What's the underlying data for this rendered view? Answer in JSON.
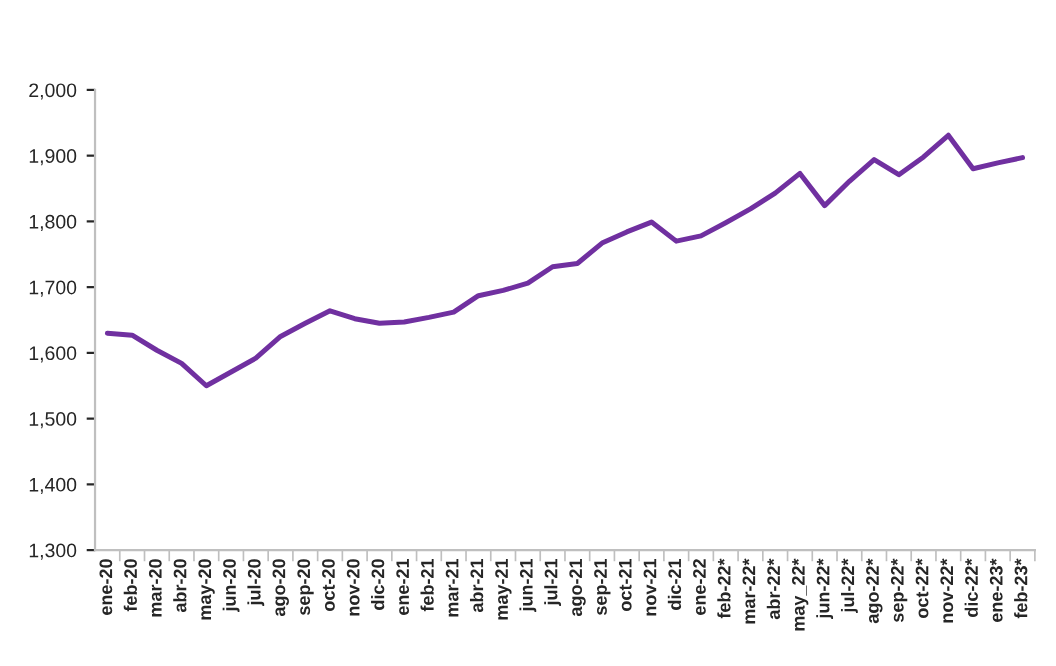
{
  "chart_data": {
    "type": "line",
    "categories": [
      "ene-20",
      "feb-20",
      "mar-20",
      "abr-20",
      "may-20",
      "jun-20",
      "jul-20",
      "ago-20",
      "sep-20",
      "oct-20",
      "nov-20",
      "dic-20",
      "ene-21",
      "feb-21",
      "mar-21",
      "abr-21",
      "may-21",
      "jun-21",
      "jul-21",
      "ago-21",
      "sep-21",
      "oct-21",
      "nov-21",
      "dic-21",
      "ene-22",
      "feb-22*",
      "mar-22*",
      "abr-22*",
      "may_22*",
      "jun-22*",
      "jul-22*",
      "ago-22*",
      "sep-22*",
      "oct-22*",
      "nov-22*",
      "dic-22*",
      "ene-23*",
      "feb-23*"
    ],
    "series": [
      {
        "color": "#7030a0",
        "values": [
          1630,
          1627,
          1604,
          1584,
          1550,
          1571,
          1592,
          1625,
          1645,
          1664,
          1652,
          1645,
          1647,
          1654,
          1662,
          1687,
          1695,
          1706,
          1731,
          1736,
          1767,
          1784,
          1799,
          1770,
          1778,
          1798,
          1819,
          1843,
          1873,
          1824,
          1861,
          1894,
          1871,
          1898,
          1931,
          1880,
          1889,
          1897
        ]
      }
    ],
    "ylim": [
      1300,
      2000
    ],
    "yticks": [
      {
        "value": 1300,
        "label": "1,300"
      },
      {
        "value": 1400,
        "label": "1,400"
      },
      {
        "value": 1500,
        "label": "1,500"
      },
      {
        "value": 1600,
        "label": "1,600"
      },
      {
        "value": 1700,
        "label": "1,700"
      },
      {
        "value": 1800,
        "label": "1,800"
      },
      {
        "value": 1900,
        "label": "1,900"
      },
      {
        "value": 2000,
        "label": "2,000"
      }
    ],
    "grid": false,
    "marker": "none",
    "line_style": "solid"
  }
}
